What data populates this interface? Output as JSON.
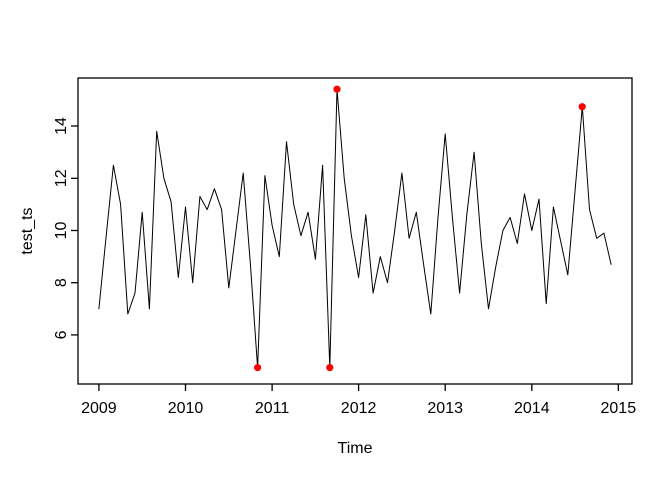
{
  "chart_data": {
    "type": "line",
    "title": "",
    "xlabel": "Time",
    "ylabel": "test_ts",
    "x_ticks": [
      2009,
      2010,
      2011,
      2012,
      2013,
      2014,
      2015
    ],
    "y_ticks": [
      6,
      8,
      10,
      12,
      14
    ],
    "xlim": [
      2008.758,
      2015.158
    ],
    "ylim": [
      4.12,
      15.84
    ],
    "grid": false,
    "legend": "none",
    "series_name": "test_ts",
    "start_year": 2009,
    "frequency": 12,
    "values": [
      7.0,
      9.8,
      12.5,
      11.0,
      6.8,
      7.6,
      10.7,
      7.0,
      13.8,
      12.0,
      11.1,
      8.2,
      10.9,
      8.0,
      11.3,
      10.8,
      11.6,
      10.8,
      7.8,
      10.0,
      12.2,
      8.7,
      4.75,
      12.1,
      10.2,
      9.0,
      13.4,
      11.0,
      9.8,
      10.7,
      8.9,
      12.5,
      4.75,
      15.41,
      12.0,
      9.8,
      8.2,
      10.6,
      7.6,
      9.0,
      8.0,
      10.0,
      12.2,
      9.7,
      10.7,
      8.7,
      6.8,
      10.5,
      13.7,
      10.5,
      7.6,
      10.6,
      13.0,
      9.5,
      7.0,
      8.6,
      10.0,
      10.5,
      9.5,
      11.4,
      10.0,
      11.2,
      7.2,
      10.9,
      9.6,
      8.3,
      11.5,
      14.74,
      10.8,
      9.7,
      9.9,
      8.7
    ],
    "outliers": [
      {
        "t": 2010.833,
        "value": 4.75
      },
      {
        "t": 2011.667,
        "value": 4.75
      },
      {
        "t": 2011.75,
        "value": 15.41
      },
      {
        "t": 2014.583,
        "value": 14.74
      }
    ],
    "line_color": "#000000",
    "outlier_color": "#FF0000",
    "background_color": "#FFFFFF"
  }
}
